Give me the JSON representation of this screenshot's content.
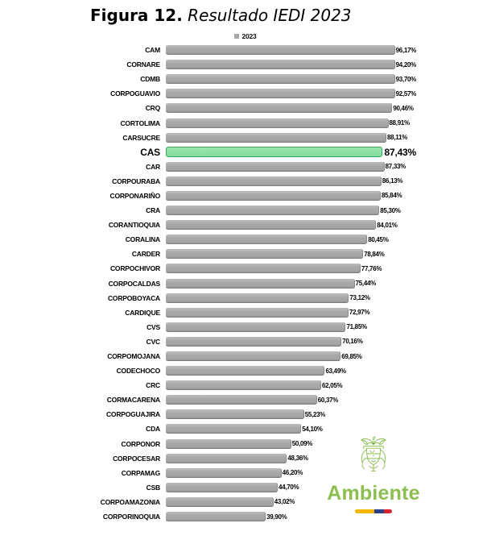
{
  "title": {
    "prefix": "Figura 12.",
    "main": " Resultado IEDI 2023"
  },
  "legend": {
    "label": "2023",
    "marker_color": "#a6a6a6"
  },
  "chart_data": {
    "type": "bar",
    "orientation": "horizontal",
    "series_name": "2023",
    "xlim": [
      0,
      100
    ],
    "grid": false,
    "legend_position": "top-center",
    "bar_color": "#a8a8a8",
    "highlight_category": "CAS",
    "highlight_fill": "#84dd9c",
    "highlight_fill_light": "#9ae6ae",
    "highlight_border": "#3aa85c",
    "categories": [
      "CAM",
      "CORNARE",
      "CDMB",
      "CORPOGUAVIO",
      "CRQ",
      "CORTOLIMA",
      "CARSUCRE",
      "CAS",
      "CAR",
      "CORPOURABA",
      "CORPONARIÑO",
      "CRA",
      "CORANTIOQUIA",
      "CORALINA",
      "CARDER",
      "CORPOCHIVOR",
      "CORPOCALDAS",
      "CORPOBOYACA",
      "CARDIQUE",
      "CVS",
      "CVC",
      "CORPOMOJANA",
      "CODECHOCO",
      "CRC",
      "CORMACARENA",
      "CORPOGUAJIRA",
      "CDA",
      "CORPONOR",
      "CORPOCESAR",
      "CORPAMAG",
      "CSB",
      "CORPOAMAZONIA",
      "CORPORINOQUIA"
    ],
    "values": [
      96.17,
      94.2,
      93.7,
      92.57,
      90.46,
      88.91,
      88.11,
      87.43,
      87.33,
      86.13,
      85.84,
      85.3,
      84.01,
      80.45,
      78.84,
      77.76,
      75.44,
      73.12,
      72.97,
      71.85,
      70.16,
      69.85,
      63.49,
      62.05,
      60.37,
      55.23,
      54.1,
      50.09,
      48.36,
      46.2,
      44.7,
      43.02,
      39.9
    ],
    "value_labels": [
      "96,17%",
      "94,20%",
      "93,70%",
      "92,57%",
      "90,46%",
      "88,91%",
      "88,11%",
      "87,43%",
      "87,33%",
      "86,13%",
      "85,84%",
      "85,30%",
      "84,01%",
      "80,45%",
      "78,84%",
      "77,76%",
      "75,44%",
      "73,12%",
      "72,97%",
      "71,85%",
      "70,16%",
      "69,85%",
      "63,49%",
      "62,05%",
      "60,37%",
      "55,23%",
      "54,10%",
      "50,09%",
      "48,36%",
      "46,20%",
      "44,70%",
      "43,02%",
      "39,90%"
    ]
  },
  "logo": {
    "text": "Ambiente",
    "text_color": "#8cbe50",
    "crest_icon": "colombia-coat-of-arms-icon",
    "flag_colors": {
      "yellow": "#f2b705",
      "blue": "#2b3e8c",
      "red": "#d9232e"
    }
  }
}
